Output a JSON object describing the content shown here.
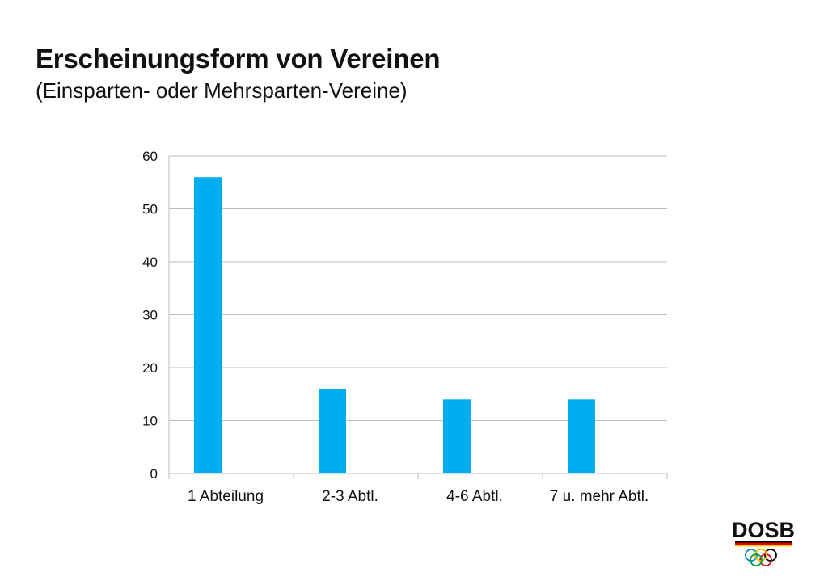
{
  "slide": {
    "title": "Erscheinungsform von Vereinen",
    "subtitle": "(Einsparten- oder Mehrsparten-Vereine)"
  },
  "logo": {
    "text": "DOSB",
    "ring_colors": [
      "#0085c7",
      "#f4c300",
      "#000000",
      "#009f3d",
      "#df0024"
    ]
  },
  "chart_data": {
    "type": "bar",
    "categories": [
      "1 Abteilung",
      "2-3 Abtl.",
      "4-6 Abtl.",
      "7 u. mehr Abtl."
    ],
    "values": [
      56,
      16,
      14,
      14
    ],
    "title": "",
    "xlabel": "",
    "ylabel": "",
    "ylim": [
      0,
      60
    ],
    "yticks": [
      0,
      10,
      20,
      30,
      40,
      50,
      60
    ],
    "grid": true,
    "legend": "none",
    "bar_color": "#00adef",
    "grid_color": "#bdbdbd"
  }
}
